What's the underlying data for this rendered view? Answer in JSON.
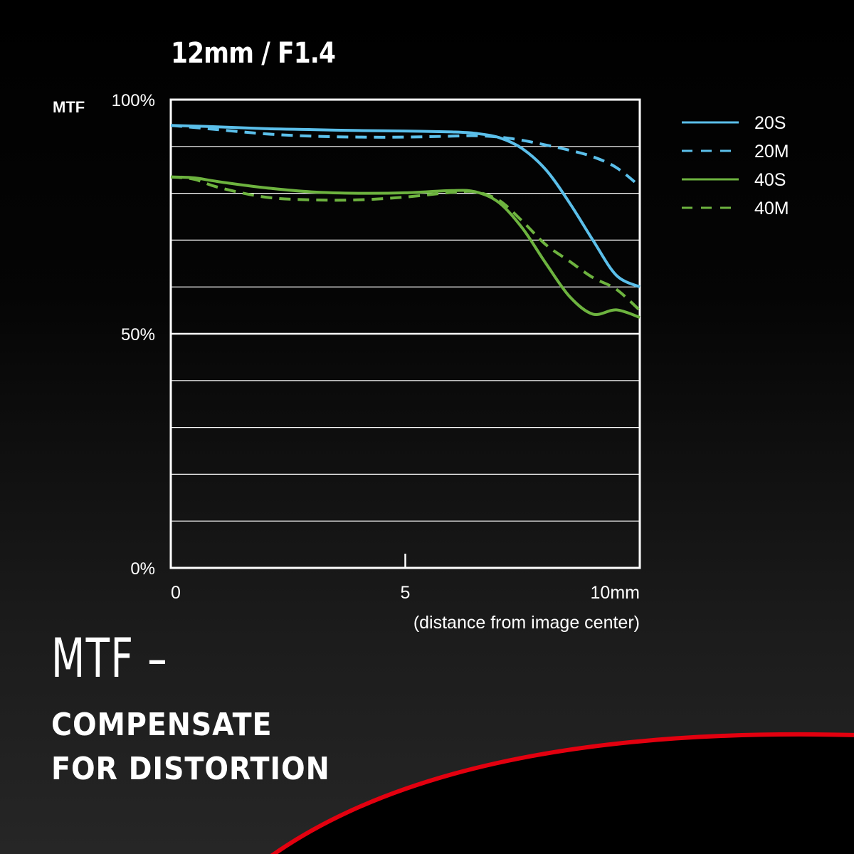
{
  "chart_data": {
    "type": "line",
    "title": "12mm / F1.4",
    "ylabel": "MTF",
    "xlabel": "(distance from image center)",
    "xlim": [
      0,
      10
    ],
    "ylim": [
      0,
      100
    ],
    "x_ticks": [
      {
        "value": 0,
        "label": "0"
      },
      {
        "value": 5,
        "label": "5"
      },
      {
        "value": 10,
        "label": "10mm"
      }
    ],
    "y_ticks": [
      {
        "value": 100,
        "label": "100%"
      },
      {
        "value": 50,
        "label": "50%"
      },
      {
        "value": 0,
        "label": "0%"
      }
    ],
    "y_grid_step": 10,
    "legend_position": "top-right",
    "series": [
      {
        "name": "20S",
        "color": "#5bbfea",
        "style": "solid",
        "x": [
          0,
          1,
          2,
          3,
          4,
          5,
          6,
          6.5,
          7,
          7.5,
          8,
          8.5,
          9,
          9.5,
          10
        ],
        "y": [
          94.5,
          94.2,
          93.8,
          93.6,
          93.4,
          93.3,
          93.1,
          92.8,
          91.9,
          89.5,
          85,
          78,
          70,
          62.5,
          60
        ]
      },
      {
        "name": "20M",
        "color": "#5bbfea",
        "style": "dashed",
        "x": [
          0,
          1,
          2,
          3,
          4,
          5,
          6,
          6.5,
          7,
          7.5,
          8,
          8.5,
          9,
          9.5,
          10
        ],
        "y": [
          94.5,
          93.6,
          92.7,
          92.2,
          92.0,
          92.0,
          92.2,
          92.3,
          92.0,
          91.3,
          90.3,
          89.2,
          87.8,
          85.5,
          81.5
        ]
      },
      {
        "name": "40S",
        "color": "#6db33f",
        "style": "solid",
        "x": [
          0,
          0.5,
          1,
          2,
          3,
          4,
          5,
          6,
          6.5,
          7,
          7.5,
          8,
          8.5,
          9,
          9.5,
          10
        ],
        "y": [
          83.5,
          83.3,
          82.5,
          81.2,
          80.3,
          80.0,
          80.1,
          80.6,
          80.3,
          78.0,
          72.5,
          65,
          58,
          54.2,
          55.1,
          53.5
        ]
      },
      {
        "name": "40M",
        "color": "#6db33f",
        "style": "dashed",
        "x": [
          0,
          0.5,
          1,
          2,
          3,
          4,
          5,
          6,
          6.5,
          7,
          7.5,
          8,
          8.5,
          9,
          9.5,
          10
        ],
        "y": [
          83.5,
          83.0,
          81.3,
          79.2,
          78.6,
          78.6,
          79.2,
          80.2,
          80.3,
          78.5,
          74,
          69,
          65.5,
          62,
          59.5,
          55
        ]
      }
    ]
  },
  "footer": {
    "headline": "MTF –",
    "line1": "COMPENSATE",
    "line2": "FOR DISTORTION"
  },
  "colors": {
    "accent_arc": "#e3000f"
  }
}
